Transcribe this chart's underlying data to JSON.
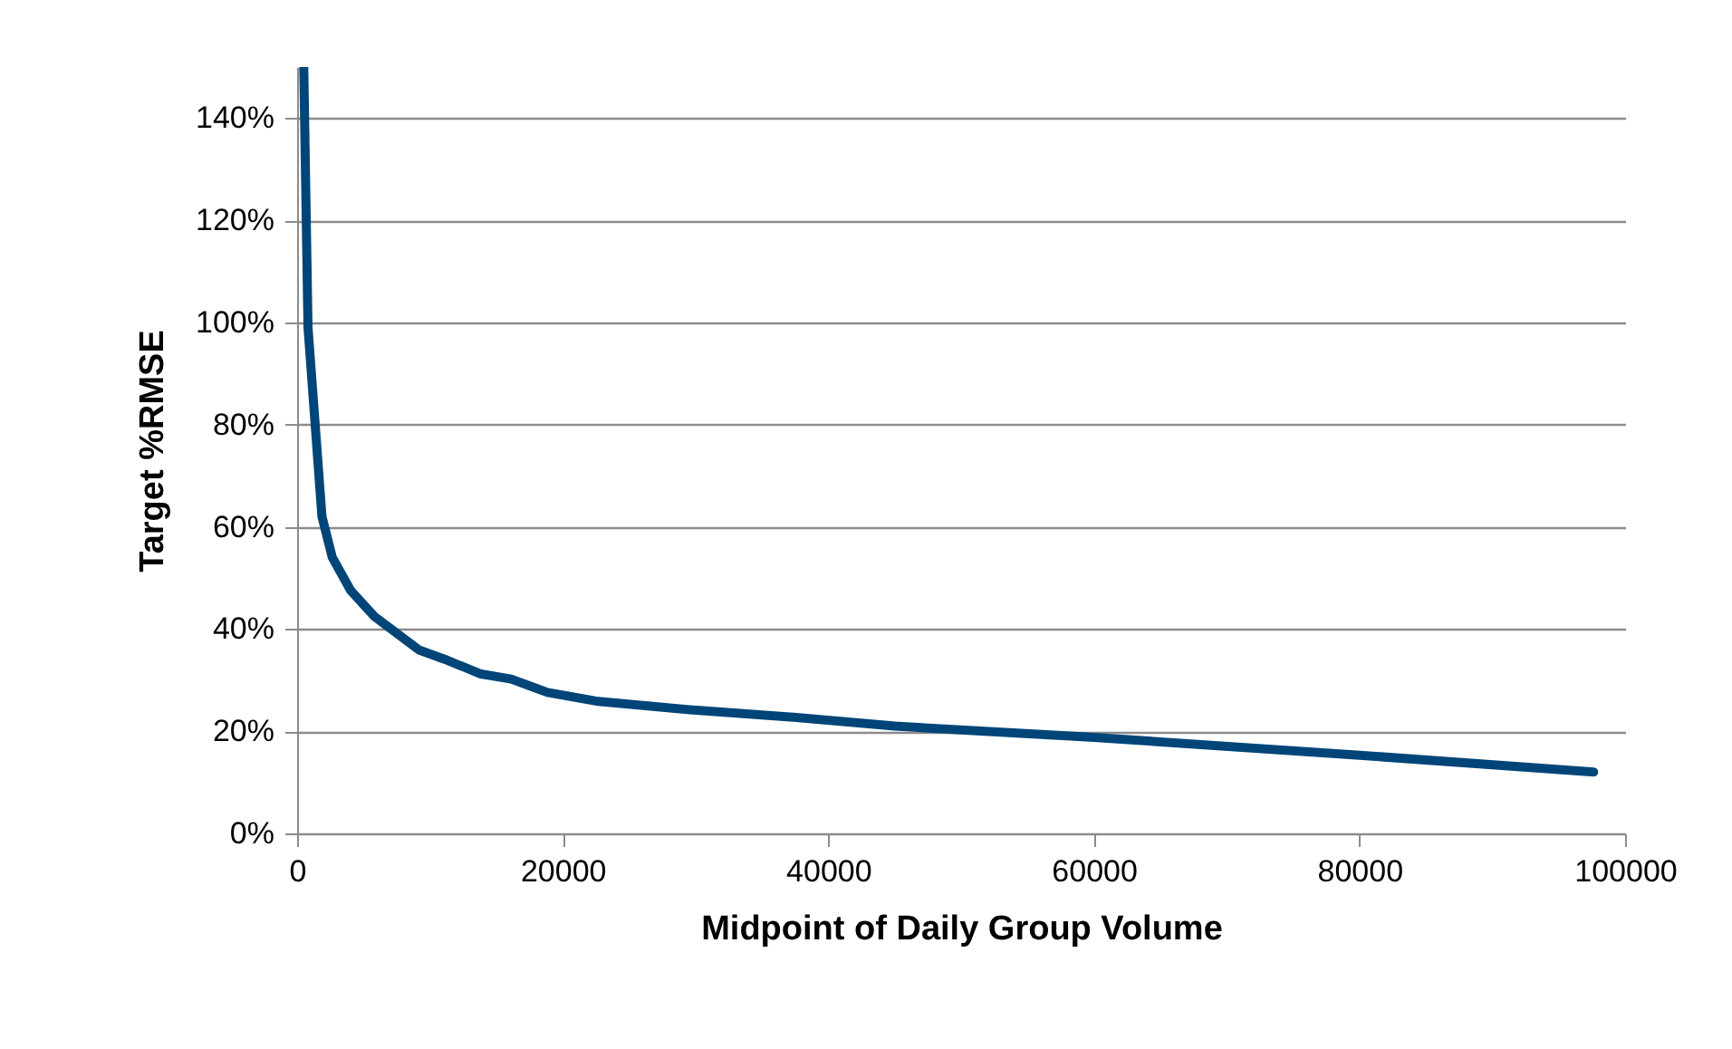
{
  "chart_data": {
    "type": "line",
    "xlabel": "Midpoint of Daily Group Volume",
    "ylabel": "Target %RMSE",
    "x": [
      500,
      820,
      1870,
      2650,
      4020,
      5840,
      9180,
      11100,
      13840,
      16120,
      18860,
      22500,
      30050,
      37580,
      45000,
      60000,
      80000,
      97630
    ],
    "series": [
      {
        "color": "#004578",
        "values": [
          150,
          99,
          62,
          54,
          47.6,
          42.4,
          35.9,
          34.1,
          31.2,
          30.2,
          27.6,
          25.9,
          24.1,
          22.7,
          21,
          18.8,
          15.3,
          12.0
        ]
      }
    ],
    "xlim": [
      0,
      100000
    ],
    "xticks": [
      0,
      20000,
      40000,
      60000,
      80000,
      100000
    ],
    "ylim": [
      0,
      150
    ],
    "yticks": [
      {
        "value": 0,
        "label": "0%"
      },
      {
        "value": 20,
        "label": "20%"
      },
      {
        "value": 40,
        "label": "40%"
      },
      {
        "value": 60,
        "label": "60%"
      },
      {
        "value": 80,
        "label": "80%"
      },
      {
        "value": 100,
        "label": "100%"
      },
      {
        "value": 120,
        "label": "120%"
      },
      {
        "value": 140,
        "label": "140%"
      }
    ],
    "grid": "y",
    "marker": "none",
    "line_style": "solid"
  }
}
